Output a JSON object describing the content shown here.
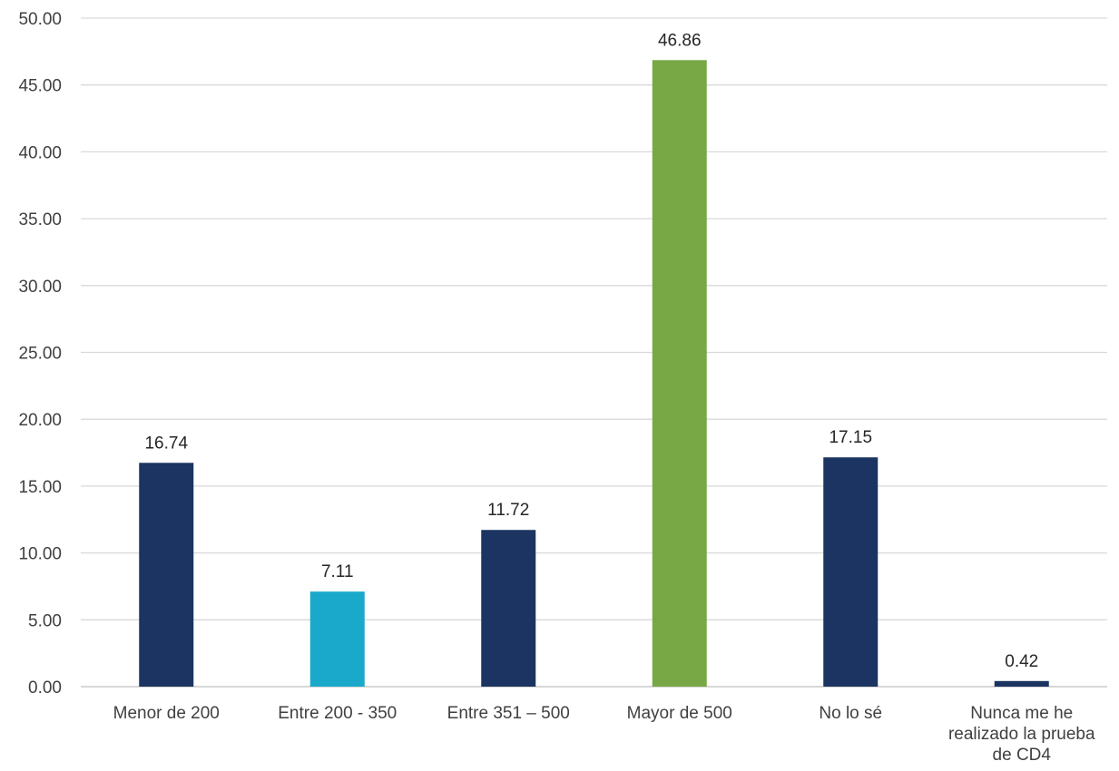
{
  "chart_data": {
    "type": "bar",
    "title": "",
    "xlabel": "",
    "ylabel": "",
    "ylim": [
      0,
      50
    ],
    "ytick_step": 5,
    "ytick_labels": [
      "0.00",
      "5.00",
      "10.00",
      "15.00",
      "20.00",
      "25.00",
      "30.00",
      "35.00",
      "40.00",
      "45.00",
      "50.00"
    ],
    "grid": true,
    "legend": "none",
    "categories": [
      "Menor de 200",
      "Entre 200 - 350",
      "Entre 351 – 500",
      "Mayor de 500",
      "No lo sé",
      "Nunca me he realizado la prueba de CD4"
    ],
    "category_label_lines": [
      [
        "Menor de 200"
      ],
      [
        "Entre 200 - 350"
      ],
      [
        "Entre 351 – 500"
      ],
      [
        "Mayor de 500"
      ],
      [
        "No lo sé"
      ],
      [
        "Nunca me he",
        "realizado la prueba",
        "de CD4"
      ]
    ],
    "values": [
      16.74,
      7.11,
      11.72,
      46.86,
      17.15,
      0.42
    ],
    "value_labels": [
      "16.74",
      "7.11",
      "11.72",
      "46.86",
      "17.15",
      "0.42"
    ],
    "colors": [
      "#1b3461",
      "#1aa9cb",
      "#1b3461",
      "#78a845",
      "#1b3461",
      "#1b3461"
    ]
  }
}
